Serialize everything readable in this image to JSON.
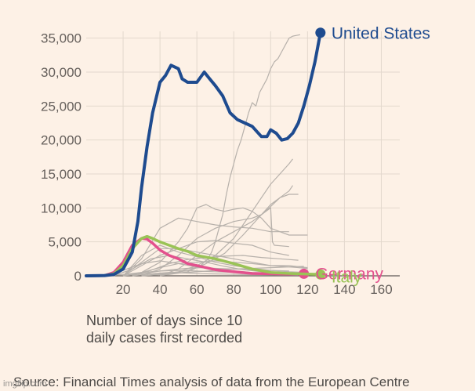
{
  "chart_data": {
    "type": "line",
    "xlabel": "Number of days since 10\ndaily cases first recorded",
    "source": "Source: Financial Times analysis of data from the European Centre",
    "xlim": [
      0,
      170
    ],
    "ylim": [
      0,
      36000
    ],
    "xticks": [
      20,
      40,
      60,
      80,
      100,
      120,
      140,
      160
    ],
    "xtick_labels": [
      "20",
      "40",
      "60",
      "80",
      "100",
      "120",
      "140",
      "160"
    ],
    "yticks": [
      0,
      5000,
      10000,
      15000,
      20000,
      25000,
      30000,
      35000
    ],
    "ytick_labels": [
      "0",
      "5,000",
      "10,000",
      "15,000",
      "20,000",
      "25,000",
      "30,000",
      "35,000"
    ],
    "grid": true,
    "series": [
      {
        "name": "United States",
        "color": "#1e4b8f",
        "highlight": true,
        "x": [
          0,
          10,
          15,
          20,
          25,
          28,
          30,
          33,
          36,
          40,
          43,
          46,
          50,
          52,
          55,
          60,
          64,
          67,
          70,
          74,
          78,
          82,
          86,
          90,
          95,
          98,
          100,
          103,
          106,
          109,
          112,
          115,
          118,
          121,
          124,
          127
        ],
        "y": [
          0,
          50,
          200,
          1000,
          3500,
          8000,
          13000,
          19000,
          24000,
          28500,
          29500,
          31000,
          30500,
          29000,
          28500,
          28500,
          30000,
          29000,
          28000,
          26500,
          24000,
          23000,
          22500,
          22000,
          20500,
          20500,
          21500,
          21000,
          20000,
          20200,
          21000,
          22500,
          25000,
          28000,
          31500,
          35800
        ]
      },
      {
        "name": "Italy",
        "color": "#9ac356",
        "highlight": true,
        "x": [
          0,
          10,
          15,
          20,
          25,
          30,
          33,
          36,
          40,
          45,
          50,
          55,
          60,
          70,
          80,
          90,
          100,
          110,
          120,
          127
        ],
        "y": [
          0,
          50,
          300,
          1500,
          4000,
          5500,
          5800,
          5500,
          5000,
          4500,
          4000,
          3600,
          3000,
          2500,
          1800,
          1000,
          500,
          350,
          250,
          200
        ]
      },
      {
        "name": "Germany",
        "color": "#e3508d",
        "highlight": true,
        "x": [
          0,
          10,
          15,
          20,
          25,
          30,
          33,
          36,
          40,
          45,
          50,
          55,
          60,
          70,
          80,
          90,
          100,
          110,
          118
        ],
        "y": [
          0,
          50,
          500,
          2000,
          4500,
          5500,
          5400,
          4800,
          3800,
          3000,
          2500,
          1800,
          1500,
          900,
          600,
          350,
          300,
          250,
          300
        ]
      }
    ],
    "background_series": [
      {
        "x": [
          30,
          45,
          55,
          62,
          66,
          68,
          70,
          72,
          74,
          76,
          78,
          80,
          82,
          84,
          86,
          88,
          90,
          92,
          94,
          96,
          98,
          100,
          102,
          104,
          106,
          108,
          110,
          112,
          114,
          116
        ],
        "y": [
          0,
          300,
          800,
          1500,
          2500,
          3500,
          5000,
          7000,
          9000,
          12000,
          14500,
          16500,
          18500,
          20000,
          22000,
          24000,
          25500,
          25000,
          27000,
          28000,
          29000,
          30500,
          31500,
          32000,
          33000,
          34000,
          35000,
          35300,
          35400,
          35500
        ]
      },
      {
        "x": [
          30,
          50,
          60,
          70,
          80,
          85,
          90,
          95,
          100,
          105,
          110,
          112
        ],
        "y": [
          0,
          600,
          1500,
          3000,
          5500,
          7500,
          9500,
          11500,
          13500,
          15000,
          16500,
          17200
        ]
      },
      {
        "x": [
          40,
          55,
          65,
          75,
          85,
          95,
          100,
          105,
          110,
          112
        ],
        "y": [
          0,
          600,
          1800,
          3300,
          6000,
          9000,
          10500,
          11500,
          12500,
          13300
        ]
      },
      {
        "x": [
          20,
          30,
          40,
          50,
          55,
          60,
          65,
          70,
          75,
          80,
          85,
          90,
          95,
          100,
          110,
          120
        ],
        "y": [
          0,
          500,
          2000,
          5000,
          7000,
          10000,
          10500,
          9800,
          9500,
          9800,
          10000,
          9500,
          8500,
          7000,
          6000,
          6000
        ]
      },
      {
        "x": [
          40,
          50,
          60,
          70,
          80,
          90,
          95,
          100,
          105,
          110,
          115
        ],
        "y": [
          0,
          1000,
          3000,
          5000,
          6500,
          8000,
          9000,
          10200,
          11500,
          12000,
          12000
        ]
      },
      {
        "x": [
          20,
          30,
          40,
          50,
          60,
          70,
          80,
          90,
          100,
          110
        ],
        "y": [
          0,
          2500,
          7000,
          8500,
          8000,
          7500,
          7200,
          7000,
          6500,
          6500
        ]
      },
      {
        "x": [
          30,
          40,
          50,
          60,
          70,
          80,
          90,
          95,
          100,
          101,
          102,
          110
        ],
        "y": [
          0,
          1000,
          3000,
          5500,
          7000,
          8000,
          8500,
          9000,
          10000,
          5000,
          4500,
          4300
        ]
      },
      {
        "x": [
          20,
          30,
          40,
          50,
          60,
          70,
          80,
          90,
          100,
          110
        ],
        "y": [
          0,
          1500,
          3000,
          4000,
          5000,
          5200,
          4800,
          4500,
          3500,
          3000
        ]
      },
      {
        "x": [
          20,
          30,
          40,
          50,
          60,
          70,
          80,
          90,
          100,
          110,
          120
        ],
        "y": [
          0,
          2000,
          4000,
          4000,
          3500,
          3000,
          2500,
          2000,
          1500,
          1500,
          1200
        ]
      },
      {
        "x": [
          20,
          30,
          40,
          50,
          60,
          70,
          80,
          90,
          100,
          110,
          120
        ],
        "y": [
          0,
          3000,
          4500,
          3500,
          2800,
          2000,
          1500,
          1100,
          800,
          600,
          500
        ]
      },
      {
        "x": [
          25,
          35,
          45,
          55,
          65,
          75,
          85,
          95,
          105,
          115
        ],
        "y": [
          0,
          800,
          1800,
          2400,
          2700,
          2900,
          3000,
          2700,
          2500,
          2300
        ]
      },
      {
        "x": [
          15,
          25,
          35,
          45,
          55,
          65,
          75,
          85,
          95,
          105
        ],
        "y": [
          0,
          1000,
          2500,
          3000,
          2500,
          2000,
          1400,
          900,
          600,
          400
        ]
      },
      {
        "x": [
          20,
          30,
          40,
          50,
          60,
          70,
          80,
          90,
          100,
          110,
          120
        ],
        "y": [
          0,
          500,
          1200,
          1800,
          2000,
          2200,
          2000,
          1800,
          1500,
          1300,
          1100
        ]
      },
      {
        "x": [
          10,
          20,
          30,
          40,
          50,
          60,
          70,
          80,
          90,
          100
        ],
        "y": [
          0,
          800,
          1800,
          2200,
          1800,
          1300,
          1000,
          700,
          500,
          400
        ]
      },
      {
        "x": [
          20,
          30,
          40,
          50,
          60,
          70,
          80,
          90,
          100,
          110
        ],
        "y": [
          0,
          300,
          700,
          1000,
          1200,
          1100,
          1000,
          900,
          800,
          700
        ]
      },
      {
        "x": [
          10,
          20,
          30,
          40,
          50,
          60,
          70,
          80,
          90,
          100,
          110,
          120
        ],
        "y": [
          0,
          200,
          500,
          700,
          800,
          700,
          600,
          500,
          400,
          300,
          300,
          250
        ]
      },
      {
        "x": [
          30,
          40,
          50,
          60,
          70,
          80,
          90,
          100,
          110,
          118
        ],
        "y": [
          0,
          200,
          400,
          600,
          800,
          1000,
          1100,
          1200,
          1300,
          1400
        ]
      },
      {
        "x": [
          25,
          35,
          45,
          55,
          65,
          75,
          85,
          95,
          105,
          115
        ],
        "y": [
          0,
          300,
          500,
          400,
          300,
          250,
          200,
          150,
          120,
          100
        ]
      }
    ]
  }
}
